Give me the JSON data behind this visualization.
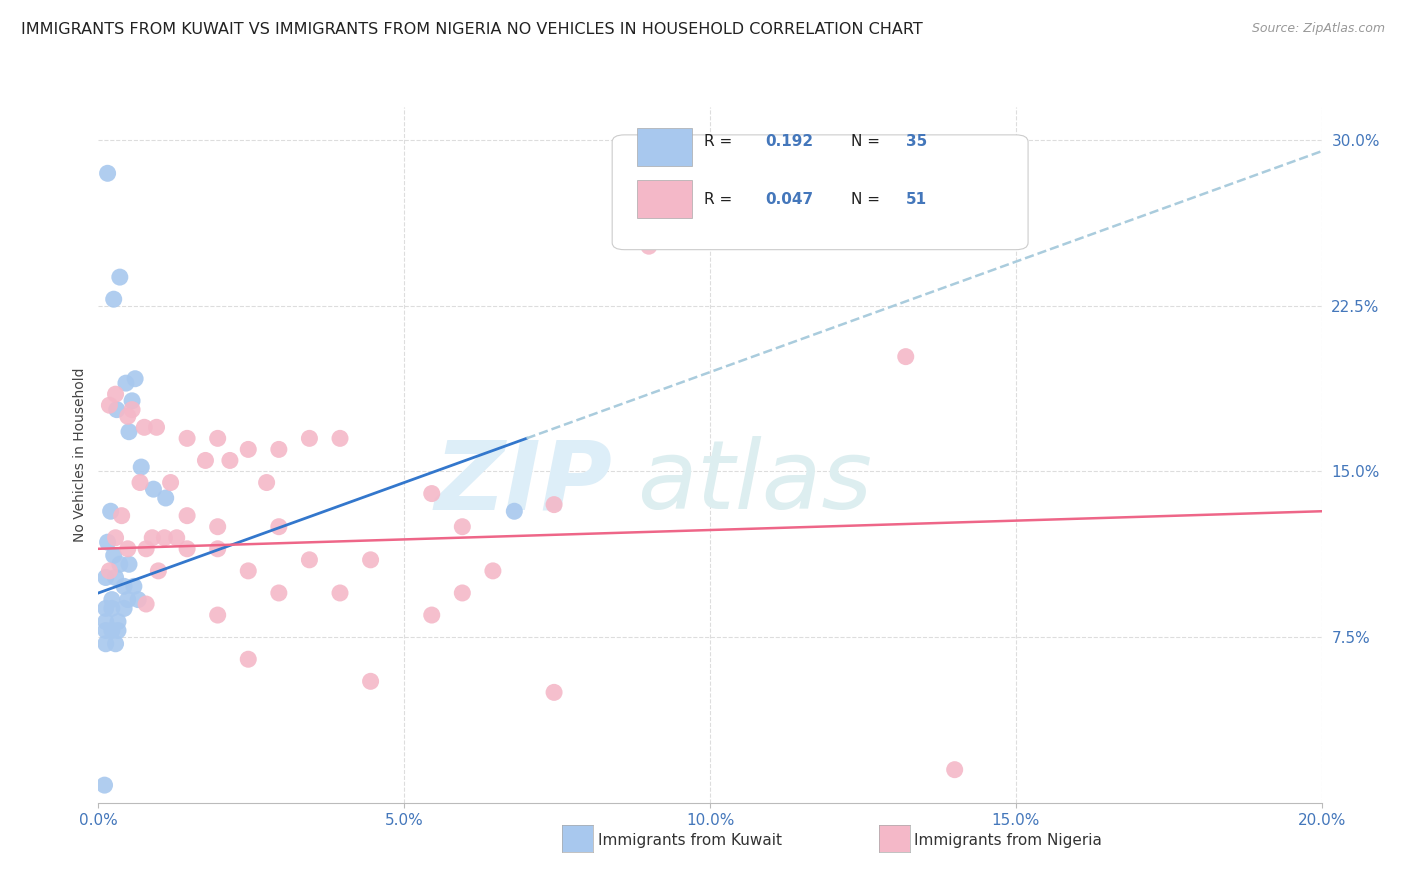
{
  "title": "IMMIGRANTS FROM KUWAIT VS IMMIGRANTS FROM NIGERIA NO VEHICLES IN HOUSEHOLD CORRELATION CHART",
  "source_text": "Source: ZipAtlas.com",
  "ylabel": "No Vehicles in Household",
  "x_tick_labels": [
    "0.0%",
    "5.0%",
    "10.0%",
    "15.0%",
    "20.0%"
  ],
  "x_tick_values": [
    0.0,
    5.0,
    10.0,
    15.0,
    20.0
  ],
  "y_tick_labels": [
    "7.5%",
    "15.0%",
    "22.5%",
    "30.0%"
  ],
  "y_tick_values": [
    7.5,
    15.0,
    22.5,
    30.0
  ],
  "xlim": [
    0.0,
    20.0
  ],
  "ylim": [
    0.0,
    31.5
  ],
  "legend_r1": "R =  0.192",
  "legend_n1": "N = 35",
  "legend_r2": "R =  0.047",
  "legend_n2": "N = 51",
  "kuwait_scatter": [
    [
      0.15,
      28.5
    ],
    [
      0.35,
      23.8
    ],
    [
      0.25,
      22.8
    ],
    [
      0.45,
      19.0
    ],
    [
      0.55,
      18.2
    ],
    [
      0.3,
      17.8
    ],
    [
      0.5,
      16.8
    ],
    [
      0.6,
      19.2
    ],
    [
      0.7,
      15.2
    ],
    [
      0.9,
      14.2
    ],
    [
      0.2,
      13.2
    ],
    [
      1.1,
      13.8
    ],
    [
      0.15,
      11.8
    ],
    [
      0.25,
      11.2
    ],
    [
      0.35,
      10.8
    ],
    [
      0.5,
      10.8
    ],
    [
      0.12,
      10.2
    ],
    [
      0.28,
      10.2
    ],
    [
      0.42,
      9.8
    ],
    [
      0.58,
      9.8
    ],
    [
      0.22,
      9.2
    ],
    [
      0.48,
      9.2
    ],
    [
      0.65,
      9.2
    ],
    [
      0.12,
      8.8
    ],
    [
      0.22,
      8.8
    ],
    [
      0.42,
      8.8
    ],
    [
      0.12,
      8.2
    ],
    [
      0.32,
      8.2
    ],
    [
      0.12,
      7.8
    ],
    [
      0.22,
      7.8
    ],
    [
      0.32,
      7.8
    ],
    [
      0.12,
      7.2
    ],
    [
      0.28,
      7.2
    ],
    [
      0.1,
      0.8
    ],
    [
      6.8,
      13.2
    ]
  ],
  "nigeria_scatter": [
    [
      0.28,
      18.5
    ],
    [
      0.55,
      17.8
    ],
    [
      9.0,
      25.2
    ],
    [
      14.2,
      26.2
    ],
    [
      13.2,
      20.2
    ],
    [
      0.18,
      18.0
    ],
    [
      0.48,
      17.5
    ],
    [
      0.75,
      17.0
    ],
    [
      0.95,
      17.0
    ],
    [
      1.45,
      16.5
    ],
    [
      1.95,
      16.5
    ],
    [
      3.45,
      16.5
    ],
    [
      3.95,
      16.5
    ],
    [
      2.45,
      16.0
    ],
    [
      2.95,
      16.0
    ],
    [
      1.75,
      15.5
    ],
    [
      2.15,
      15.5
    ],
    [
      0.68,
      14.5
    ],
    [
      1.18,
      14.5
    ],
    [
      2.75,
      14.5
    ],
    [
      5.45,
      14.0
    ],
    [
      7.45,
      13.5
    ],
    [
      0.38,
      13.0
    ],
    [
      1.45,
      13.0
    ],
    [
      1.95,
      12.5
    ],
    [
      2.95,
      12.5
    ],
    [
      5.95,
      12.5
    ],
    [
      0.28,
      12.0
    ],
    [
      0.88,
      12.0
    ],
    [
      1.08,
      12.0
    ],
    [
      1.28,
      12.0
    ],
    [
      0.48,
      11.5
    ],
    [
      0.78,
      11.5
    ],
    [
      1.45,
      11.5
    ],
    [
      1.95,
      11.5
    ],
    [
      3.45,
      11.0
    ],
    [
      4.45,
      11.0
    ],
    [
      6.45,
      10.5
    ],
    [
      0.18,
      10.5
    ],
    [
      0.98,
      10.5
    ],
    [
      2.45,
      10.5
    ],
    [
      2.95,
      9.5
    ],
    [
      3.95,
      9.5
    ],
    [
      5.95,
      9.5
    ],
    [
      0.78,
      9.0
    ],
    [
      1.95,
      8.5
    ],
    [
      5.45,
      8.5
    ],
    [
      2.45,
      6.5
    ],
    [
      4.45,
      5.5
    ],
    [
      7.45,
      5.0
    ],
    [
      14.0,
      1.5
    ]
  ],
  "kuwait_color": "#a8c8ee",
  "nigeria_color": "#f4b8c8",
  "kuwait_line_color": "#3377cc",
  "nigeria_line_color": "#ee6688",
  "dashed_line_color": "#aaccdd",
  "background_color": "#ffffff",
  "grid_color": "#dddddd",
  "axis_color": "#bbbbbb",
  "title_fontsize": 11.5,
  "tick_color": "#4477bb",
  "watermark_zip_color": "#ddeef8",
  "watermark_atlas_color": "#ddeef0"
}
